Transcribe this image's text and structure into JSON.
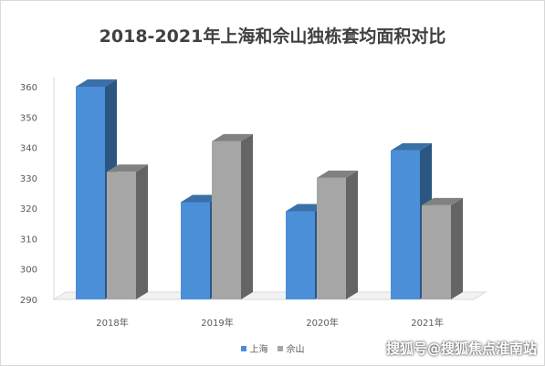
{
  "chart_data": {
    "type": "bar",
    "title": "2018-2021年上海和佘山独栋套均面积对比",
    "categories": [
      "2018年",
      "2019年",
      "2020年",
      "2021年"
    ],
    "series": [
      {
        "name": "上海",
        "values": [
          360,
          322,
          319,
          339
        ],
        "color": "#4a8fd8"
      },
      {
        "name": "佘山",
        "values": [
          332,
          342,
          330,
          321
        ],
        "color": "#a6a6a6"
      }
    ],
    "ylim": [
      290,
      360
    ],
    "yticks": [
      290,
      300,
      310,
      320,
      330,
      340,
      350,
      360
    ],
    "xlabel": "",
    "ylabel": "",
    "grid": false,
    "legend": "bottom",
    "style": "3d-bar"
  },
  "watermark": "搜狐号@搜狐焦点淮南站"
}
